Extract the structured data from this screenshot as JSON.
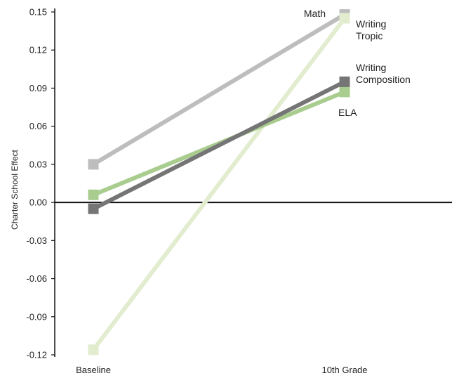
{
  "chart_data": {
    "type": "line",
    "title": "",
    "xlabel": "",
    "ylabel": "Charter School Effect",
    "categories": [
      "Baseline",
      "10th Grade"
    ],
    "ylim": [
      -0.12,
      0.15
    ],
    "yticks": [
      "0.15",
      "0.12",
      "0.09",
      "0.06",
      "0.03",
      "0.00",
      "-0.03",
      "-0.06",
      "-0.09",
      "-0.12"
    ],
    "ytick_values": [
      0.15,
      0.12,
      0.09,
      0.06,
      0.03,
      0.0,
      -0.03,
      -0.06,
      -0.09,
      -0.12
    ],
    "grid": false,
    "legend": "none (series labeled at line ends)",
    "series": [
      {
        "name": "Math",
        "label_lines": [
          "Math"
        ],
        "values": [
          0.03,
          0.148
        ],
        "color": "#bdbdbd"
      },
      {
        "name": "Writing Tropic",
        "label_lines": [
          "Writing",
          "Tropic"
        ],
        "values": [
          -0.116,
          0.145
        ],
        "color": "#e2eccf"
      },
      {
        "name": "ELA",
        "label_lines": [
          "ELA"
        ],
        "values": [
          0.006,
          0.087
        ],
        "color": "#a9cc8f"
      },
      {
        "name": "Writing Composition",
        "label_lines": [
          "Writing",
          "Composition"
        ],
        "values": [
          -0.005,
          0.095
        ],
        "color": "#757575"
      }
    ]
  }
}
